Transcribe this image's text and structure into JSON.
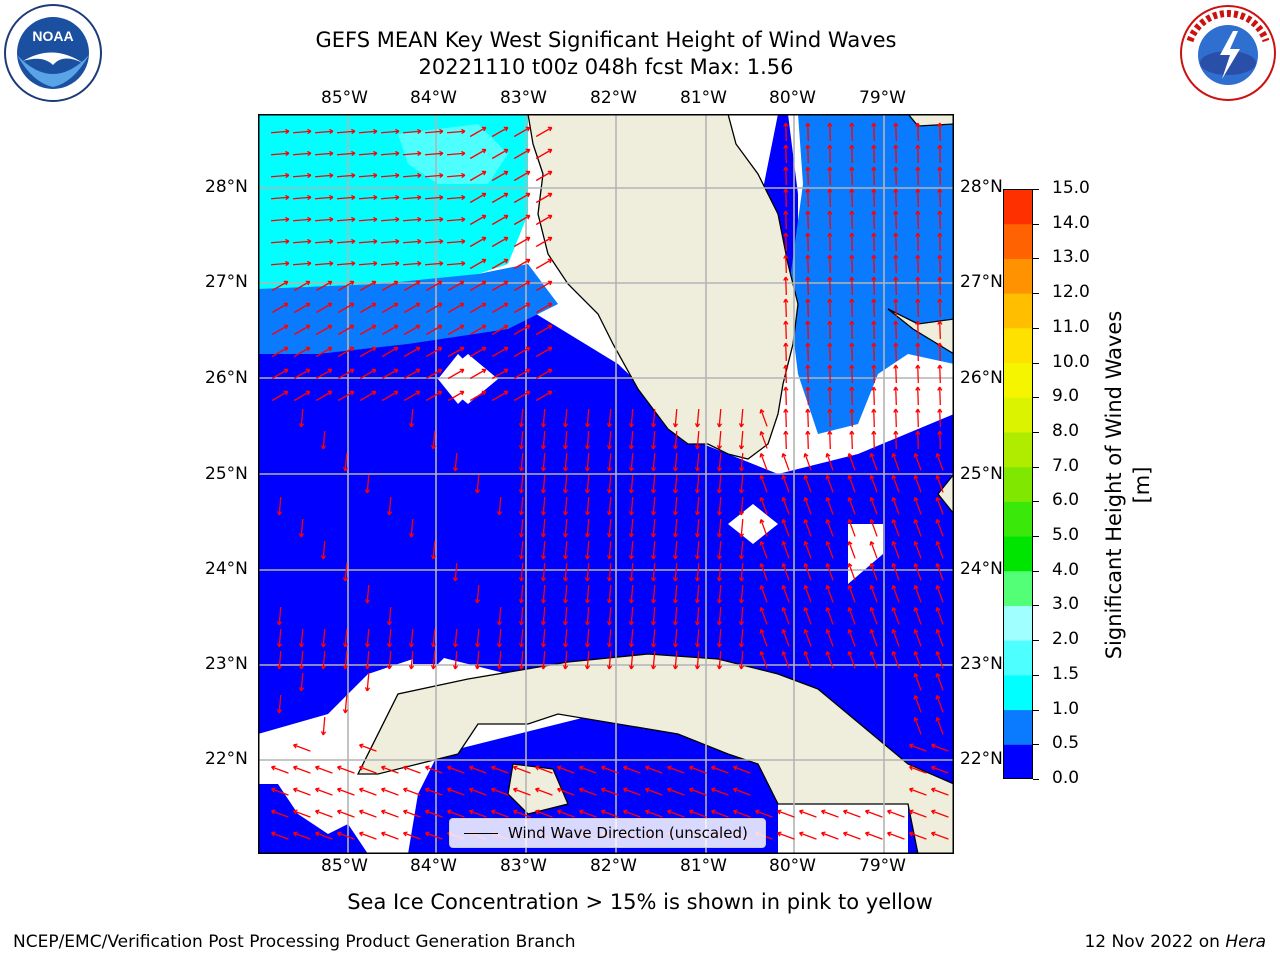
{
  "title_line1": "GEFS MEAN Key West Significant Height of Wind Waves",
  "title_line2": "20221110 t00z 048h fcst   Max: 1.56",
  "logos": {
    "left": "NOAA",
    "right": "NATIONAL WEATHER SERVICE"
  },
  "lon_labels": [
    "85°W",
    "84°W",
    "83°W",
    "82°W",
    "81°W",
    "80°W",
    "79°W"
  ],
  "lat_labels": [
    "28°N",
    "27°N",
    "26°N",
    "25°N",
    "24°N",
    "23°N",
    "22°N"
  ],
  "legend_label": "Wind Wave Direction (unscaled)",
  "colorbar": {
    "label": "Significant Height of Wind Waves [m]",
    "ticks": [
      "15.0",
      "14.0",
      "13.0",
      "12.0",
      "11.0",
      "10.0",
      "9.0",
      "8.0",
      "7.0",
      "6.0",
      "5.0",
      "4.0",
      "3.0",
      "2.0",
      "1.5",
      "1.0",
      "0.5",
      "0.0"
    ],
    "colors": [
      "#0000ff",
      "#0a7bff",
      "#00ffff",
      "#4dffff",
      "#a0ffff",
      "#52ff77",
      "#00e500",
      "#3ae80a",
      "#80e800",
      "#b0ec00",
      "#dcf300",
      "#f5f500",
      "#ffe100",
      "#ffbe00",
      "#ff9200",
      "#ff6200",
      "#ff3000",
      "#ff0000"
    ]
  },
  "colors": {
    "land": "#efeedc",
    "ocean_0_05": "#0000ff",
    "ocean_05_1": "#0a7bff",
    "ocean_1_15": "#00ffff",
    "ocean_15_2": "#4dffff",
    "arrow": "#ff0000",
    "grid": "#b4b4b4"
  },
  "sea_ice_note": "Sea Ice Concentration > 15% is shown in pink to yellow",
  "credit": "NCEP/EMC/Verification Post Processing Product Generation Branch",
  "date_text": "12 Nov 2022 on",
  "date_machine": "Hera"
}
